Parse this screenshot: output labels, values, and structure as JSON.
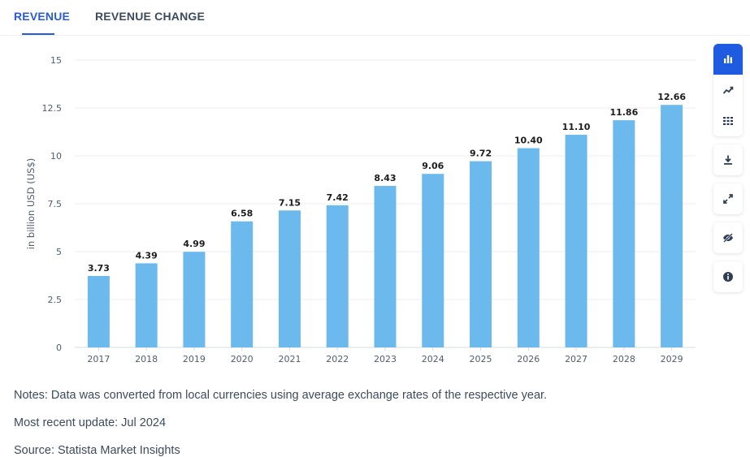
{
  "tabs": [
    {
      "label": "REVENUE",
      "active": true
    },
    {
      "label": "REVENUE CHANGE",
      "active": false
    }
  ],
  "chart_data": {
    "type": "bar",
    "categories": [
      "2017",
      "2018",
      "2019",
      "2020",
      "2021",
      "2022",
      "2023",
      "2024",
      "2025",
      "2026",
      "2027",
      "2028",
      "2029"
    ],
    "values": [
      3.73,
      4.39,
      4.99,
      6.58,
      7.15,
      7.42,
      8.43,
      9.06,
      9.72,
      10.4,
      11.1,
      11.86,
      12.66
    ],
    "value_labels": [
      "3.73",
      "4.39",
      "4.99",
      "6.58",
      "7.15",
      "7.42",
      "8.43",
      "9.06",
      "9.72",
      "10.40",
      "11.10",
      "11.86",
      "12.66"
    ],
    "title": "",
    "xlabel": "",
    "ylabel": "in billion USD (US$)",
    "ylim": [
      0,
      15
    ],
    "yticks": [
      0,
      2.5,
      5,
      7.5,
      10,
      12.5,
      15
    ],
    "ytick_labels": [
      "0",
      "2.5",
      "5",
      "7.5",
      "10",
      "12.5",
      "15"
    ],
    "grid": true,
    "bar_color": "#6cb9ee"
  },
  "toolbar": {
    "items": [
      {
        "name": "bar-chart-icon",
        "active": true
      },
      {
        "name": "line-chart-icon",
        "active": false
      },
      {
        "name": "table-icon",
        "active": false
      },
      {
        "name": "download-icon",
        "active": false
      },
      {
        "name": "fullscreen-icon",
        "active": false
      },
      {
        "name": "hide-icon",
        "active": false
      },
      {
        "name": "info-icon",
        "active": false
      }
    ],
    "accent": "#1f5be0"
  },
  "notes": {
    "note": "Notes: Data was converted from local currencies using average exchange rates of the respective year.",
    "update": "Most recent update: Jul 2024",
    "source": "Source: Statista Market Insights"
  }
}
